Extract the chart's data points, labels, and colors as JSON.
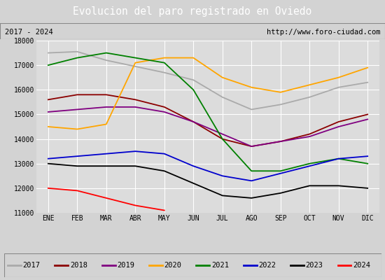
{
  "title": "Evolucion del paro registrado en Oviedo",
  "title_color": "#ffffff",
  "title_bg": "#5b9bd5",
  "subtitle_left": "2017 - 2024",
  "subtitle_right": "http://www.foro-ciudad.com",
  "months": [
    "ENE",
    "FEB",
    "MAR",
    "ABR",
    "MAY",
    "JUN",
    "JUL",
    "AGO",
    "SEP",
    "OCT",
    "NOV",
    "DIC"
  ],
  "ylim": [
    11000,
    18000
  ],
  "yticks": [
    11000,
    12000,
    13000,
    14000,
    15000,
    16000,
    17000,
    18000
  ],
  "series": {
    "2017": {
      "color": "#aaaaaa",
      "data": [
        17500,
        17550,
        17200,
        16950,
        16700,
        16400,
        15700,
        15200,
        15400,
        15700,
        16100,
        16300
      ]
    },
    "2018": {
      "color": "#8b0000",
      "data": [
        15600,
        15800,
        15800,
        15600,
        15300,
        14700,
        14000,
        13700,
        13900,
        14200,
        14700,
        15000
      ]
    },
    "2019": {
      "color": "#800080",
      "data": [
        15100,
        15200,
        15300,
        15300,
        15100,
        14700,
        14200,
        13700,
        13900,
        14100,
        14500,
        14800
      ]
    },
    "2020": {
      "color": "#ffa500",
      "data": [
        14500,
        14400,
        14600,
        17100,
        17300,
        17300,
        16500,
        16100,
        15900,
        16200,
        16500,
        16900
      ]
    },
    "2021": {
      "color": "#008000",
      "data": [
        17000,
        17300,
        17500,
        17300,
        17100,
        16000,
        14000,
        12700,
        12700,
        13000,
        13200,
        13000
      ]
    },
    "2022": {
      "color": "#0000cd",
      "data": [
        13200,
        13300,
        13400,
        13500,
        13400,
        12900,
        12500,
        12300,
        12600,
        12900,
        13200,
        13300
      ]
    },
    "2023": {
      "color": "#000000",
      "data": [
        13000,
        12900,
        12900,
        12900,
        12700,
        12200,
        11700,
        11600,
        11800,
        12100,
        12100,
        12000
      ]
    },
    "2024": {
      "color": "#ff0000",
      "data": [
        12000,
        11900,
        11600,
        11300,
        11100,
        null,
        null,
        null,
        null,
        null,
        null,
        null
      ]
    }
  },
  "bg_color": "#d3d3d3",
  "plot_bg": "#dcdcdc",
  "grid_color": "#ffffff",
  "legend_bg": "#ffffff",
  "legend_border": "#888888",
  "title_fontsize": 10.5,
  "tick_fontsize": 7,
  "legend_fontsize": 7.5
}
